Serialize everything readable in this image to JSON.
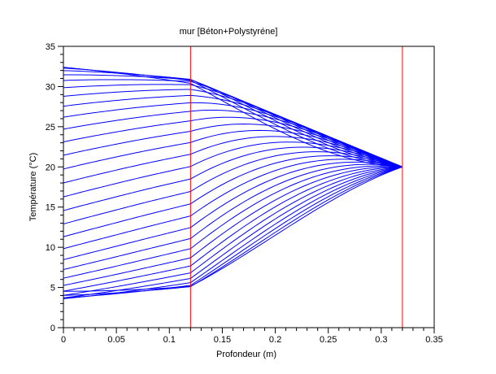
{
  "chart_data": {
    "type": "line",
    "title": "mur [Béton+Polystyréne]",
    "xlabel": "Profondeur (m)",
    "ylabel": "Température (°C)",
    "xlim": [
      0,
      0.35
    ],
    "ylim": [
      0,
      35
    ],
    "x_major_ticks": [
      0,
      0.05,
      0.1,
      0.15,
      0.2,
      0.25,
      0.3,
      0.35
    ],
    "x_tick_labels": [
      "0",
      "0.05",
      "0.1",
      "0.15",
      "0.2",
      "0.25",
      "0.3",
      "0.35"
    ],
    "y_major_ticks": [
      0,
      5,
      10,
      15,
      20,
      25,
      30,
      35
    ],
    "y_tick_labels": [
      "0",
      "5",
      "10",
      "15",
      "20",
      "25",
      "30",
      "35"
    ],
    "minor_ticks_per_interval": 4,
    "grid": false,
    "legend": null,
    "colors": {
      "profiles": "#0000ff",
      "material_boundaries": "#ff0000",
      "frame": "#000000",
      "text": "#000000",
      "background": "#ffffff"
    },
    "material_boundaries_x": [
      0.12,
      0.32
    ],
    "convergence_point": {
      "x": 0.32,
      "temperature": 20
    },
    "outer_face_temp_range": [
      3.6,
      32.4
    ],
    "interface_temp_range": [
      5.1,
      30.9
    ],
    "profiles_model": {
      "description": "30 successive temperature profiles through the wall; T(x) = mean(x) + amp(x)*sin(phase_k - lag(x)) with phase_k = phase_start + k*phase_step; parameters are piecewise-linear between x_nodes (material interface at 0.12 m, inner face fixed at 20 °C at 0.32 m)",
      "n_curves": 30,
      "phase_start": 1.5708,
      "phase_step": 0.1208,
      "x_nodes": [
        0,
        0.02,
        0.04,
        0.06,
        0.08,
        0.1,
        0.12,
        0.16,
        0.2,
        0.24,
        0.28,
        0.32
      ],
      "mean": [
        18,
        18,
        18,
        18,
        18,
        18,
        18,
        18.4,
        18.8,
        19.2,
        19.6,
        20
      ],
      "amp": [
        14.4,
        14.15,
        13.9,
        13.65,
        13.4,
        13.15,
        12.9,
        10.32,
        7.74,
        5.16,
        2.58,
        0
      ],
      "lag": [
        0,
        0.047,
        0.093,
        0.14,
        0.187,
        0.233,
        0.28,
        0.49,
        0.7,
        0.91,
        1.12,
        1.33
      ]
    }
  }
}
